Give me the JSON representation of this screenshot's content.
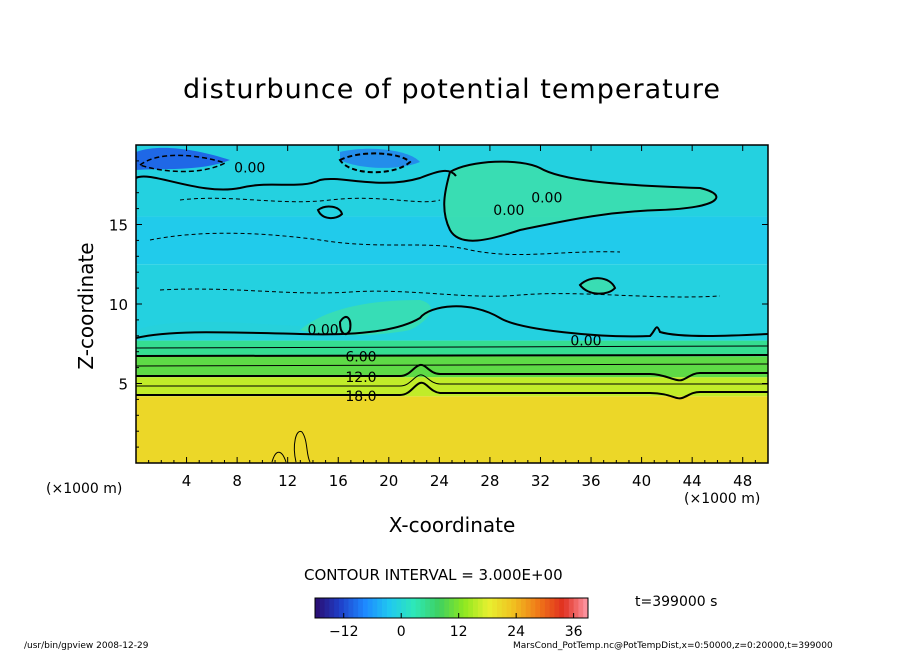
{
  "chart_data": {
    "type": "heatmap",
    "title": "disturbunce of potential temperature",
    "xlabel": "X-coordinate",
    "ylabel": "Z-coordinate",
    "x_unit": "(×1000 m)",
    "xlim": [
      0,
      50
    ],
    "ylim": [
      0,
      20
    ],
    "x_ticks": [
      4,
      8,
      12,
      16,
      20,
      24,
      28,
      32,
      36,
      40,
      44,
      48
    ],
    "y_ticks": [
      5,
      10,
      15
    ],
    "colorbar": {
      "range": [
        -18,
        39
      ],
      "ticks": [
        -12,
        0,
        12,
        24,
        36
      ],
      "tick_labels": [
        "−12",
        "0",
        "12",
        "24",
        "36"
      ],
      "colors": [
        "#2a0b6e",
        "#1f3fc8",
        "#1e88ff",
        "#20c8f0",
        "#2ee8b8",
        "#3ed060",
        "#8ee820",
        "#e8f030",
        "#f0c020",
        "#f07818",
        "#e03020",
        "#ff9aa8"
      ]
    },
    "contour_interval": "CONTOUR INTERVAL = 3.000E+00",
    "contour_labels": [
      {
        "text": "0.00",
        "x": 9.0,
        "z": 18.6
      },
      {
        "text": "0.00",
        "x": 32.5,
        "z": 16.7
      },
      {
        "text": "0.00",
        "x": 29.5,
        "z": 15.9
      },
      {
        "text": "0.00",
        "x": 14.8,
        "z": 8.4
      },
      {
        "text": "0.00",
        "x": 35.6,
        "z": 7.7
      },
      {
        "text": "6.00",
        "x": 17.8,
        "z": 6.7
      },
      {
        "text": "12.0",
        "x": 17.8,
        "z": 5.4
      },
      {
        "text": "18.0",
        "x": 17.8,
        "z": 4.2
      }
    ],
    "field_bands": [
      {
        "z_from": 0,
        "z_to": 4.2,
        "value": 21
      },
      {
        "z_from": 4.2,
        "z_to": 5.4,
        "value": 16
      },
      {
        "z_from": 5.4,
        "z_to": 6.7,
        "value": 10
      },
      {
        "z_from": 6.7,
        "z_to": 7.7,
        "value": 5
      },
      {
        "z_from": 7.7,
        "z_to": 12.5,
        "value": -1
      },
      {
        "z_from": 12.5,
        "z_to": 15.5,
        "value": -2
      },
      {
        "z_from": 15.5,
        "z_to": 20,
        "value": -1
      }
    ],
    "time": "t=399000 s"
  },
  "footer": {
    "left": "/usr/bin/gpview   2008-12-29",
    "right": "MarsCond_PotTemp.nc@PotTempDist,x=0:50000,z=0:20000,t=399000"
  }
}
